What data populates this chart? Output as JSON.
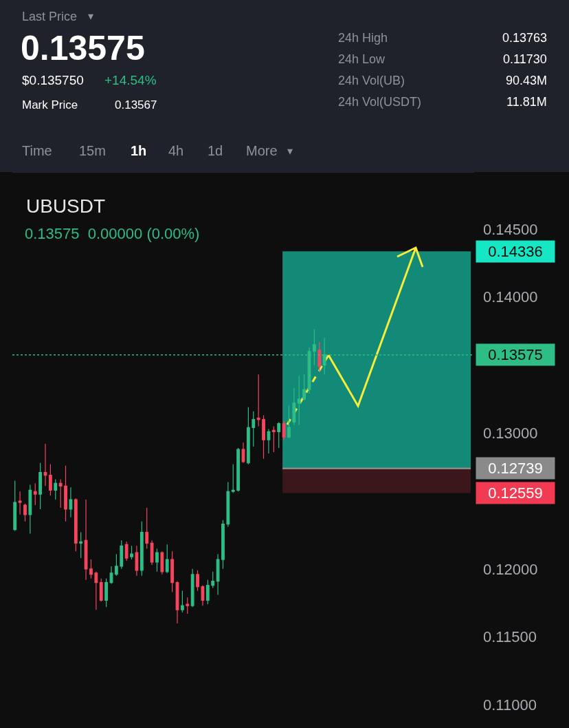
{
  "chart_data": {
    "type": "candlestick",
    "title": "UBUSDT",
    "subtitle": "0.13575  0.00000 (0.00%)",
    "annotations": [
      "Last Price",
      "0.13575",
      "$0.135750",
      "+14.54%",
      "Mark Price",
      "0.13567",
      "24h High",
      "0.13763",
      "24h Low",
      "0.11730",
      "24h Vol(UB)",
      "90.43M",
      "24h Vol(USDT)",
      "11.81M",
      "Time",
      "15m",
      "1h",
      "4h",
      "1d",
      "More",
      "▾",
      "▾"
    ],
    "categories": [
      null,
      null,
      null,
      null,
      null,
      null,
      null,
      null,
      null,
      null,
      null,
      null,
      null,
      null,
      null,
      null,
      null,
      null,
      null,
      null,
      null,
      null,
      null,
      null,
      null,
      null,
      null,
      null,
      null,
      null,
      null,
      null,
      null,
      null,
      null,
      null,
      null,
      null,
      null,
      null,
      null,
      null,
      null,
      null,
      null,
      null,
      null,
      null,
      null,
      null,
      null,
      null,
      null,
      null,
      null,
      null,
      null,
      null,
      null,
      null,
      null,
      null,
      null,
      null,
      null,
      null,
      null,
      null,
      null,
      null,
      null,
      null,
      null,
      null,
      null,
      null,
      null,
      null,
      null,
      null,
      null,
      null,
      null,
      null,
      null,
      null,
      null,
      null,
      null,
      null,
      null
    ],
    "ohlc": [
      [
        0.1229,
        0.1265,
        0.1228,
        0.1249
      ],
      [
        0.125,
        0.1257,
        0.124,
        0.1249
      ],
      [
        0.1247,
        0.1248,
        0.1235,
        0.124
      ],
      [
        0.124,
        0.1262,
        0.1226,
        0.1258
      ],
      [
        0.1257,
        0.1263,
        0.1247,
        0.1255
      ],
      [
        0.1255,
        0.1278,
        0.1244,
        0.1271
      ],
      [
        0.1271,
        0.1292,
        0.1261,
        0.1269
      ],
      [
        0.1269,
        0.1277,
        0.1254,
        0.1258
      ],
      [
        0.1258,
        0.1266,
        0.1251,
        0.1263
      ],
      [
        0.1263,
        0.1266,
        0.1245,
        0.1261
      ],
      [
        0.1261,
        0.1276,
        0.1235,
        0.1244
      ],
      [
        0.1244,
        0.126,
        0.1238,
        0.1251
      ],
      [
        0.1251,
        0.1252,
        0.1213,
        0.1219
      ],
      [
        0.1219,
        0.1227,
        0.1208,
        0.122
      ],
      [
        0.1221,
        0.1251,
        0.1192,
        0.12
      ],
      [
        0.12,
        0.1207,
        0.1193,
        0.1196
      ],
      [
        0.1197,
        0.1198,
        0.117,
        0.119
      ],
      [
        0.119,
        0.1193,
        0.1176,
        0.1177
      ],
      [
        0.1177,
        0.1193,
        0.1172,
        0.119
      ],
      [
        0.119,
        0.1202,
        0.1189,
        0.1197
      ],
      [
        0.1196,
        0.1211,
        0.1195,
        0.1202
      ],
      [
        0.1202,
        0.1221,
        0.12,
        0.1217
      ],
      [
        0.1218,
        0.122,
        0.1206,
        0.1208
      ],
      [
        0.1209,
        0.1217,
        0.1207,
        0.1211
      ],
      [
        0.1212,
        0.1217,
        0.1195,
        0.1199
      ],
      [
        0.1199,
        0.1235,
        0.1195,
        0.1227
      ],
      [
        0.1227,
        0.1245,
        0.1215,
        0.1219
      ],
      [
        0.1219,
        0.1221,
        0.1203,
        0.1205
      ],
      [
        0.1205,
        0.1215,
        0.1198,
        0.1212
      ],
      [
        0.1212,
        0.1213,
        0.1196,
        0.1198
      ],
      [
        0.1198,
        0.1218,
        0.1197,
        0.1207
      ],
      [
        0.1207,
        0.1213,
        0.1183,
        0.119
      ],
      [
        0.119,
        0.1191,
        0.116,
        0.117
      ],
      [
        0.117,
        0.1184,
        0.1168,
        0.1173
      ],
      [
        0.1174,
        0.1179,
        0.1167,
        0.1173
      ],
      [
        0.1173,
        0.12,
        0.1172,
        0.1196
      ],
      [
        0.1196,
        0.1199,
        0.1184,
        0.1187
      ],
      [
        0.1187,
        0.1188,
        0.1173,
        0.1177
      ],
      [
        0.1177,
        0.1192,
        0.1174,
        0.1188
      ],
      [
        0.1188,
        0.1198,
        0.1186,
        0.1191
      ],
      [
        0.1191,
        0.1211,
        0.1181,
        0.1207
      ],
      [
        0.1207,
        0.1236,
        0.12,
        0.1233
      ],
      [
        0.1233,
        0.1264,
        0.1231,
        0.1257
      ],
      [
        0.1257,
        0.1277,
        0.1256,
        0.1258
      ],
      [
        0.1258,
        0.1289,
        0.1257,
        0.1288
      ],
      [
        0.1288,
        0.1293,
        0.1278,
        0.1279
      ],
      [
        0.1278,
        0.1319,
        0.1277,
        0.1304
      ],
      [
        0.1304,
        0.1316,
        0.129,
        0.131
      ],
      [
        0.1311,
        0.1343,
        0.1305,
        0.131
      ],
      [
        0.131,
        0.1313,
        0.1281,
        0.1295
      ],
      [
        0.1295,
        0.1303,
        0.1285,
        0.1301
      ],
      [
        0.1302,
        0.1305,
        0.1286,
        0.1301
      ],
      [
        0.1301,
        0.1308,
        0.1289,
        0.1307
      ],
      [
        0.1307,
        0.1309,
        0.1295,
        0.1297
      ],
      [
        0.1297,
        0.132,
        0.1296,
        0.1304
      ],
      [
        0.1308,
        0.1333,
        0.1306,
        0.1322
      ],
      [
        0.1322,
        0.1342,
        0.1306,
        0.1325
      ],
      [
        0.1325,
        0.1343,
        0.1324,
        0.1332
      ],
      [
        0.1332,
        0.1363,
        0.1329,
        0.136
      ],
      [
        0.136,
        0.13763,
        0.135,
        0.1365
      ],
      [
        0.1361,
        0.1367,
        0.1345,
        0.1349
      ],
      [
        0.135,
        0.137,
        0.1343,
        0.13575
      ],
      null,
      null,
      null,
      null,
      null,
      null,
      null,
      null,
      null,
      null,
      null,
      null,
      null,
      null,
      null,
      null,
      null,
      null,
      null,
      null,
      null,
      null,
      null,
      null,
      null,
      null,
      null,
      null,
      null
    ],
    "colors": [
      "#2ebd85",
      "#f6465d",
      "#f6465d",
      "#2ebd85",
      "#f6465d",
      "#2ebd85",
      "#f6465d",
      "#f6465d",
      "#2ebd85",
      "#f6465d",
      "#f6465d",
      "#2ebd85",
      "#f6465d",
      "#2ebd85",
      "#f6465d",
      "#f6465d",
      "#f6465d",
      "#f6465d",
      "#2ebd85",
      "#2ebd85",
      "#2ebd85",
      "#2ebd85",
      "#f6465d",
      "#2ebd85",
      "#f6465d",
      "#2ebd85",
      "#f6465d",
      "#f6465d",
      "#2ebd85",
      "#f6465d",
      "#2ebd85",
      "#f6465d",
      "#f6465d",
      "#2ebd85",
      "#f6465d",
      "#2ebd85",
      "#f6465d",
      "#f6465d",
      "#2ebd85",
      "#2ebd85",
      "#2ebd85",
      "#2ebd85",
      "#2ebd85",
      "#2ebd85",
      "#2ebd85",
      "#f6465d",
      "#2ebd85",
      "#2ebd85",
      "#f6465d",
      "#f6465d",
      "#2ebd85",
      "#f6465d",
      "#2ebd85",
      "#f6465d",
      "#2ebd85",
      "#2ebd85",
      "#2ebd85",
      "#2ebd85",
      "#2ebd85",
      "#2ebd85",
      "#f6465d",
      "#2ebd85",
      null,
      null,
      null,
      null,
      null,
      null,
      null,
      null,
      null,
      null,
      null,
      null,
      null,
      null,
      null,
      null,
      null,
      null,
      null,
      null,
      null,
      null,
      null,
      null,
      null,
      null,
      null,
      null,
      null
    ],
    "ylim": [
      0.1083,
      0.1492
    ],
    "yticks": [
      {
        "value": 0.11,
        "label": "0.11000"
      },
      {
        "value": 0.115,
        "label": "0.11500"
      },
      {
        "value": 0.12,
        "label": "0.12000"
      },
      {
        "value": 0.13,
        "label": "0.13000"
      },
      {
        "value": 0.14,
        "label": "0.14000"
      },
      {
        "value": 0.145,
        "label": "0.14500"
      }
    ],
    "tick_labels": "y",
    "ref_lines": [
      {
        "axis": "y",
        "value": 0.13575,
        "label": "0.13575",
        "color": "#2ebd85",
        "line_style": "dotted"
      },
      {
        "axis": "y",
        "value": 0.12739,
        "label": "0.12739",
        "color": "#8a8a8a",
        "line_style": "solid"
      }
    ],
    "bands": [
      {
        "axis": "y",
        "from": 0.12739,
        "to": 0.14336,
        "label": "0.14336",
        "color": "#16e6c4"
      },
      {
        "axis": "y",
        "from": 0.12559,
        "to": 0.12739,
        "label": "0.12559",
        "color": "#f23a52"
      }
    ]
  }
}
